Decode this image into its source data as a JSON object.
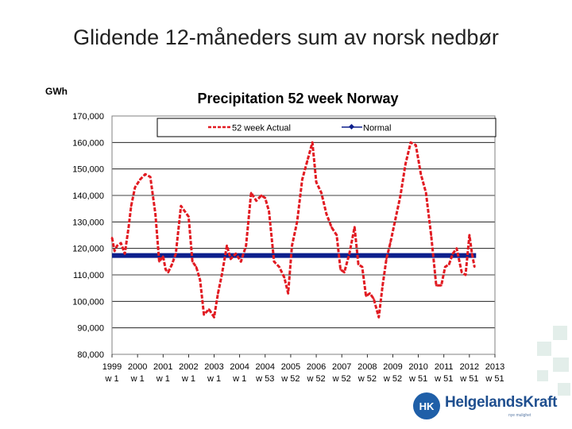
{
  "slide": {
    "title": "Glidende 12-måneders sum av norsk nedbør"
  },
  "logo": {
    "mark": "HK",
    "text": "HelgelandsKraft",
    "tagline": "nye mulighet",
    "icon": "helgelandskraft-logo-icon"
  },
  "colors": {
    "actual": "#e11b22",
    "normal": "#0d1f8c",
    "gridline": "#000000",
    "plot_border": "#808080"
  },
  "chart_data": {
    "type": "line",
    "title": "Precipitation 52 week Norway",
    "ylabel": "GWh",
    "ylim": [
      80000,
      170000
    ],
    "yticks": [
      "170,000",
      "160,000",
      "150,000",
      "140,000",
      "130,000",
      "120,000",
      "110,000",
      "100,000",
      "90,000",
      "80,000"
    ],
    "ytick_values": [
      170000,
      160000,
      150000,
      140000,
      130000,
      120000,
      110000,
      100000,
      90000,
      80000
    ],
    "x_range": [
      1999.0,
      2014.0
    ],
    "xticks": [
      {
        "x": 1999,
        "year": "1999",
        "week": "w 1"
      },
      {
        "x": 2000,
        "year": "2000",
        "week": "w 1"
      },
      {
        "x": 2001,
        "year": "2001",
        "week": "w 1"
      },
      {
        "x": 2002,
        "year": "2002",
        "week": "w 1"
      },
      {
        "x": 2003,
        "year": "2003",
        "week": "w 1"
      },
      {
        "x": 2004,
        "year": "2004",
        "week": "w 1"
      },
      {
        "x": 2005,
        "year": "2004",
        "week": "w 53"
      },
      {
        "x": 2006,
        "year": "2005",
        "week": "w 52"
      },
      {
        "x": 2007,
        "year": "2006",
        "week": "w 52"
      },
      {
        "x": 2008,
        "year": "2007",
        "week": "w 52"
      },
      {
        "x": 2009,
        "year": "2008",
        "week": "w 52"
      },
      {
        "x": 2010,
        "year": "2009",
        "week": "w 52"
      },
      {
        "x": 2011,
        "year": "2010",
        "week": "w 51"
      },
      {
        "x": 2012,
        "year": "2011",
        "week": "w 51"
      },
      {
        "x": 2013,
        "year": "2012",
        "week": "w 51"
      },
      {
        "x": 2014,
        "year": "2013",
        "week": "w 51"
      }
    ],
    "grid": "horizontal",
    "legend_position": "top",
    "series": [
      {
        "name": "52 week Actual",
        "style": "dashed",
        "x": [
          1999.0,
          1999.1,
          1999.2,
          1999.35,
          1999.5,
          1999.65,
          1999.75,
          1999.9,
          2000.1,
          2000.3,
          2000.5,
          2000.7,
          2000.85,
          2001.0,
          2001.1,
          2001.2,
          2001.35,
          2001.5,
          2001.7,
          2001.85,
          2002.0,
          2002.15,
          2002.3,
          2002.45,
          2002.6,
          2002.8,
          2003.0,
          2003.15,
          2003.3,
          2003.5,
          2003.65,
          2003.85,
          2004.05,
          2004.25,
          2004.45,
          2004.65,
          2004.85,
          2005.0,
          2005.15,
          2005.35,
          2005.55,
          2005.75,
          2005.9,
          2006.05,
          2006.25,
          2006.45,
          2006.65,
          2006.85,
          2007.0,
          2007.2,
          2007.4,
          2007.6,
          2007.8,
          2007.95,
          2008.1,
          2008.3,
          2008.5,
          2008.65,
          2008.8,
          2008.95,
          2009.1,
          2009.25,
          2009.45,
          2009.6,
          2009.75,
          2009.9,
          2010.1,
          2010.3,
          2010.5,
          2010.7,
          2010.9,
          2011.1,
          2011.3,
          2011.5,
          2011.7,
          2011.9,
          2012.05,
          2012.2,
          2012.35,
          2012.5,
          2012.7,
          2012.85,
          2013.0,
          2013.1,
          2013.2
        ],
        "values": [
          124000,
          119000,
          121000,
          122000,
          118000,
          128000,
          136000,
          143000,
          146000,
          148000,
          147000,
          133000,
          115000,
          117000,
          112000,
          111000,
          114000,
          118000,
          136000,
          134000,
          132000,
          115000,
          113000,
          108000,
          95000,
          97000,
          94000,
          103000,
          110000,
          121000,
          116000,
          118000,
          115000,
          121000,
          141000,
          138000,
          140000,
          139000,
          134000,
          115000,
          113000,
          109000,
          103000,
          121000,
          130000,
          146000,
          153000,
          160000,
          145000,
          141000,
          133000,
          128000,
          125000,
          112000,
          111000,
          118000,
          128000,
          114000,
          113000,
          102000,
          103000,
          101000,
          94000,
          106000,
          116000,
          122000,
          131000,
          140000,
          152000,
          160000,
          159000,
          148000,
          141000,
          125000,
          106000,
          106000,
          113000,
          114000,
          118000,
          120000,
          111000,
          110000,
          125000,
          118000,
          113000
        ]
      },
      {
        "name": "Normal",
        "style": "solid-marker",
        "x": [
          1999.0,
          2013.2
        ],
        "values": [
          117300,
          117300
        ]
      }
    ]
  }
}
